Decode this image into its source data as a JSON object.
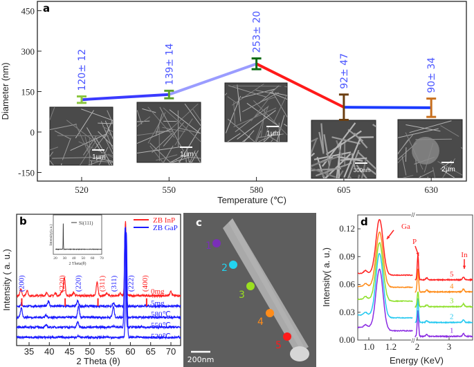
{
  "chart_data": [
    {
      "panel": "a",
      "type": "line",
      "categories": [
        "520",
        "550",
        "580",
        "605",
        "630"
      ],
      "values": [
        120,
        139,
        253,
        92,
        90
      ],
      "errors": [
        12,
        14,
        20,
        47,
        34
      ],
      "value_labels": [
        "120± 12",
        "139± 14",
        "253± 20",
        "92± 47",
        "90± 34"
      ],
      "xlabel": "Temperature (℃)",
      "ylabel": "Diameter (nm)",
      "yticks": [
        "450",
        "300",
        "150",
        "0",
        "-150"
      ],
      "ylim": [
        -180,
        485
      ],
      "segment_colors": [
        "#3a3aff",
        "#9a9cff",
        "#ff1a1a",
        "#1a3aff"
      ],
      "errorbar_colors": [
        "#8cc63f",
        "#5a9e2a",
        "#0b6b14",
        "#6b3e10",
        "#c8701e"
      ],
      "inset_scale_bars": [
        "1µm",
        "1µm",
        "1µm",
        "300nm",
        "2µm"
      ]
    },
    {
      "panel": "b",
      "type": "line",
      "xlabel": "2 Theta (θ)",
      "ylabel": "Intensity ( a. u.)",
      "xlim": [
        32,
        72.4
      ],
      "xticks": [
        "35",
        "40",
        "45",
        "50",
        "55",
        "60",
        "65",
        "70"
      ],
      "legend": [
        {
          "name": "ZB  InP",
          "color": "#ff2020"
        },
        {
          "name": "ZB  GaP",
          "color": "#1a1aff"
        }
      ],
      "series": [
        {
          "name": "0mg",
          "color": "#ff2020",
          "baseline": 38,
          "peaks": [
            [
              33.0,
              5
            ],
            [
              34.5,
              4
            ],
            [
              39.3,
              2
            ],
            [
              41.5,
              2
            ],
            [
              43.0,
              3
            ],
            [
              43.7,
              14
            ],
            [
              46.0,
              2.5
            ],
            [
              51.8,
              10
            ],
            [
              54.2,
              2
            ],
            [
              57.5,
              2
            ],
            [
              58.8,
              57
            ],
            [
              70.0,
              3
            ]
          ]
        },
        {
          "name": "5mg",
          "color": "#1a1aff",
          "baseline": 30,
          "peaks": [
            [
              33.1,
              2
            ],
            [
              39.8,
              4
            ],
            [
              47.0,
              4
            ],
            [
              55.8,
              2.5
            ],
            [
              58.8,
              60
            ]
          ]
        },
        {
          "name": "580℃",
          "color": "#1a1aff",
          "baseline": 21.5,
          "peaks": [
            [
              33.1,
              7
            ],
            [
              39.2,
              1.5
            ],
            [
              47.2,
              8
            ],
            [
              55.8,
              8
            ],
            [
              58.7,
              68
            ]
          ]
        },
        {
          "name": "550℃",
          "color": "#1a1aff",
          "baseline": 14,
          "peaks": [
            [
              39.2,
              1.5
            ],
            [
              47.0,
              4
            ],
            [
              55.8,
              1.2
            ],
            [
              58.7,
              76
            ]
          ]
        },
        {
          "name": "520℃",
          "color": "#1a1aff",
          "baseline": 6.3,
          "peaks": [
            [
              47.2,
              1
            ],
            [
              59.0,
              80
            ]
          ]
        }
      ],
      "reference_sticks": {
        "name": "ZB  InP",
        "color": "#ff2020",
        "positions": [
          33.2,
          43.9,
          52.0,
          64.0
        ]
      },
      "peak_labels": [
        {
          "text": "(200)",
          "x": 33.0,
          "color": "#1a1aff"
        },
        {
          "text": "(220)",
          "x": 43.0,
          "color": "#ff2020"
        },
        {
          "text": "(220)",
          "x": 47.0,
          "color": "#1a1aff"
        },
        {
          "text": "(311)",
          "x": 52.9,
          "color": "#ff2020"
        },
        {
          "text": "(311)",
          "x": 55.8,
          "color": "#1a1aff"
        },
        {
          "text": "(222)",
          "x": 60.0,
          "color": "#1a1aff"
        },
        {
          "text": "(400)",
          "x": 63.5,
          "color": "#ff2020"
        }
      ],
      "inset": {
        "type": "line",
        "legend": "Si(111)",
        "xlabel": "2 Theta(θ)",
        "ylabel": "Intensity(a.u.)",
        "xticks": [
          "20",
          "30",
          "40",
          "50",
          "60",
          "70"
        ],
        "peak": 28.5
      }
    },
    {
      "panel": "d",
      "type": "line",
      "xlabel": "Energy (KeV)",
      "ylabel": "Intensity( a. u.)",
      "ylim": [
        0,
        0.135
      ],
      "yticks": [
        "0.00",
        "0.03",
        "0.06",
        "0.09",
        "0.12"
      ],
      "xticks": [
        "1.0",
        "1.2",
        "2",
        "3"
      ],
      "x_break": true,
      "series": [
        {
          "name": "1",
          "color": "#8a2be2",
          "left_base": 0.0137,
          "ga_peak": 0.078,
          "after_ga": 0.01,
          "right_base": 0.004,
          "p_peak": 0.032,
          "in_peak": 0.007
        },
        {
          "name": "2",
          "color": "#22c8f0",
          "left_base": 0.027,
          "ga_peak": 0.095,
          "after_ga": 0.024,
          "right_base": 0.019,
          "p_peak": 0.045,
          "in_peak": 0.022
        },
        {
          "name": "3",
          "color": "#8ee02a",
          "left_base": 0.044,
          "ga_peak": 0.106,
          "after_ga": 0.042,
          "right_base": 0.036,
          "p_peak": 0.052,
          "in_peak": 0.039
        },
        {
          "name": "4",
          "color": "#ff8c1a",
          "left_base": 0.058,
          "ga_peak": 0.117,
          "after_ga": 0.057,
          "right_base": 0.052,
          "p_peak": 0.077,
          "in_peak": 0.055
        },
        {
          "name": "5",
          "color": "#ff2020",
          "left_base": 0.072,
          "ga_peak": 0.131,
          "after_ga": 0.07,
          "right_base": 0.065,
          "p_peak": 0.091,
          "in_peak": 0.068
        }
      ],
      "annotations": [
        "Ga",
        "P",
        "In"
      ]
    }
  ],
  "panels": {
    "a": "a",
    "b": "b",
    "c": "c",
    "d": "d"
  },
  "panel_c": {
    "points": [
      {
        "label": "1",
        "color": "#7a2fb8"
      },
      {
        "label": "2",
        "color": "#22d4f0"
      },
      {
        "label": "3",
        "color": "#9be020"
      },
      {
        "label": "4",
        "color": "#ff8c1a"
      },
      {
        "label": "5",
        "color": "#ff1a1a"
      }
    ],
    "scale_bar": "200nm"
  }
}
